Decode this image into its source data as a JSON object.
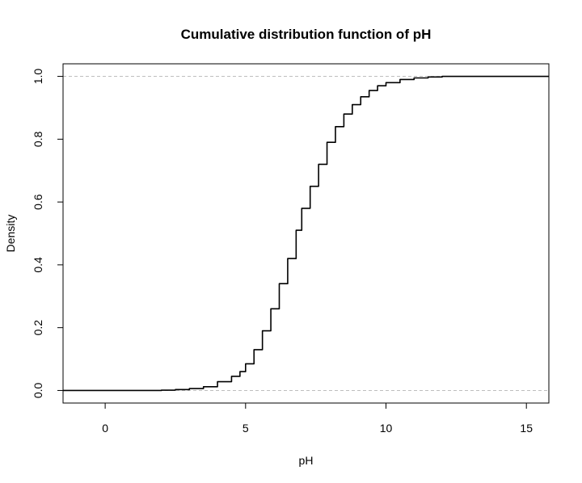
{
  "chart_data": {
    "type": "line",
    "title": "Cumulative distribution function of pH",
    "xlabel": "pH",
    "ylabel": "Density",
    "xlim": [
      -1.5,
      15.8
    ],
    "ylim": [
      -0.04,
      1.04
    ],
    "x_ticks": [
      0,
      5,
      10,
      15
    ],
    "y_ticks": [
      0.0,
      0.2,
      0.4,
      0.6,
      0.8,
      1.0
    ],
    "x_tick_labels": [
      "0",
      "5",
      "10",
      "15"
    ],
    "y_tick_labels": [
      "0.0",
      "0.2",
      "0.4",
      "0.6",
      "0.8",
      "1.0"
    ],
    "reference_lines": [
      0,
      1
    ],
    "grid": false,
    "series": [
      {
        "line_color": "#000000",
        "x": [
          1.4,
          2.0,
          2.5,
          3.0,
          3.5,
          4.0,
          4.5,
          4.8,
          5.0,
          5.3,
          5.6,
          5.9,
          6.2,
          6.5,
          6.8,
          7.0,
          7.3,
          7.6,
          7.9,
          8.2,
          8.5,
          8.8,
          9.1,
          9.4,
          9.7,
          10.0,
          10.5,
          11.0,
          11.5,
          12.0
        ],
        "y": [
          0.0,
          0.001,
          0.003,
          0.006,
          0.012,
          0.028,
          0.045,
          0.06,
          0.085,
          0.13,
          0.19,
          0.26,
          0.34,
          0.42,
          0.51,
          0.58,
          0.65,
          0.72,
          0.79,
          0.84,
          0.88,
          0.91,
          0.935,
          0.955,
          0.97,
          0.98,
          0.99,
          0.995,
          0.998,
          1.0
        ]
      }
    ],
    "reference_line_color": "#bebebe"
  }
}
